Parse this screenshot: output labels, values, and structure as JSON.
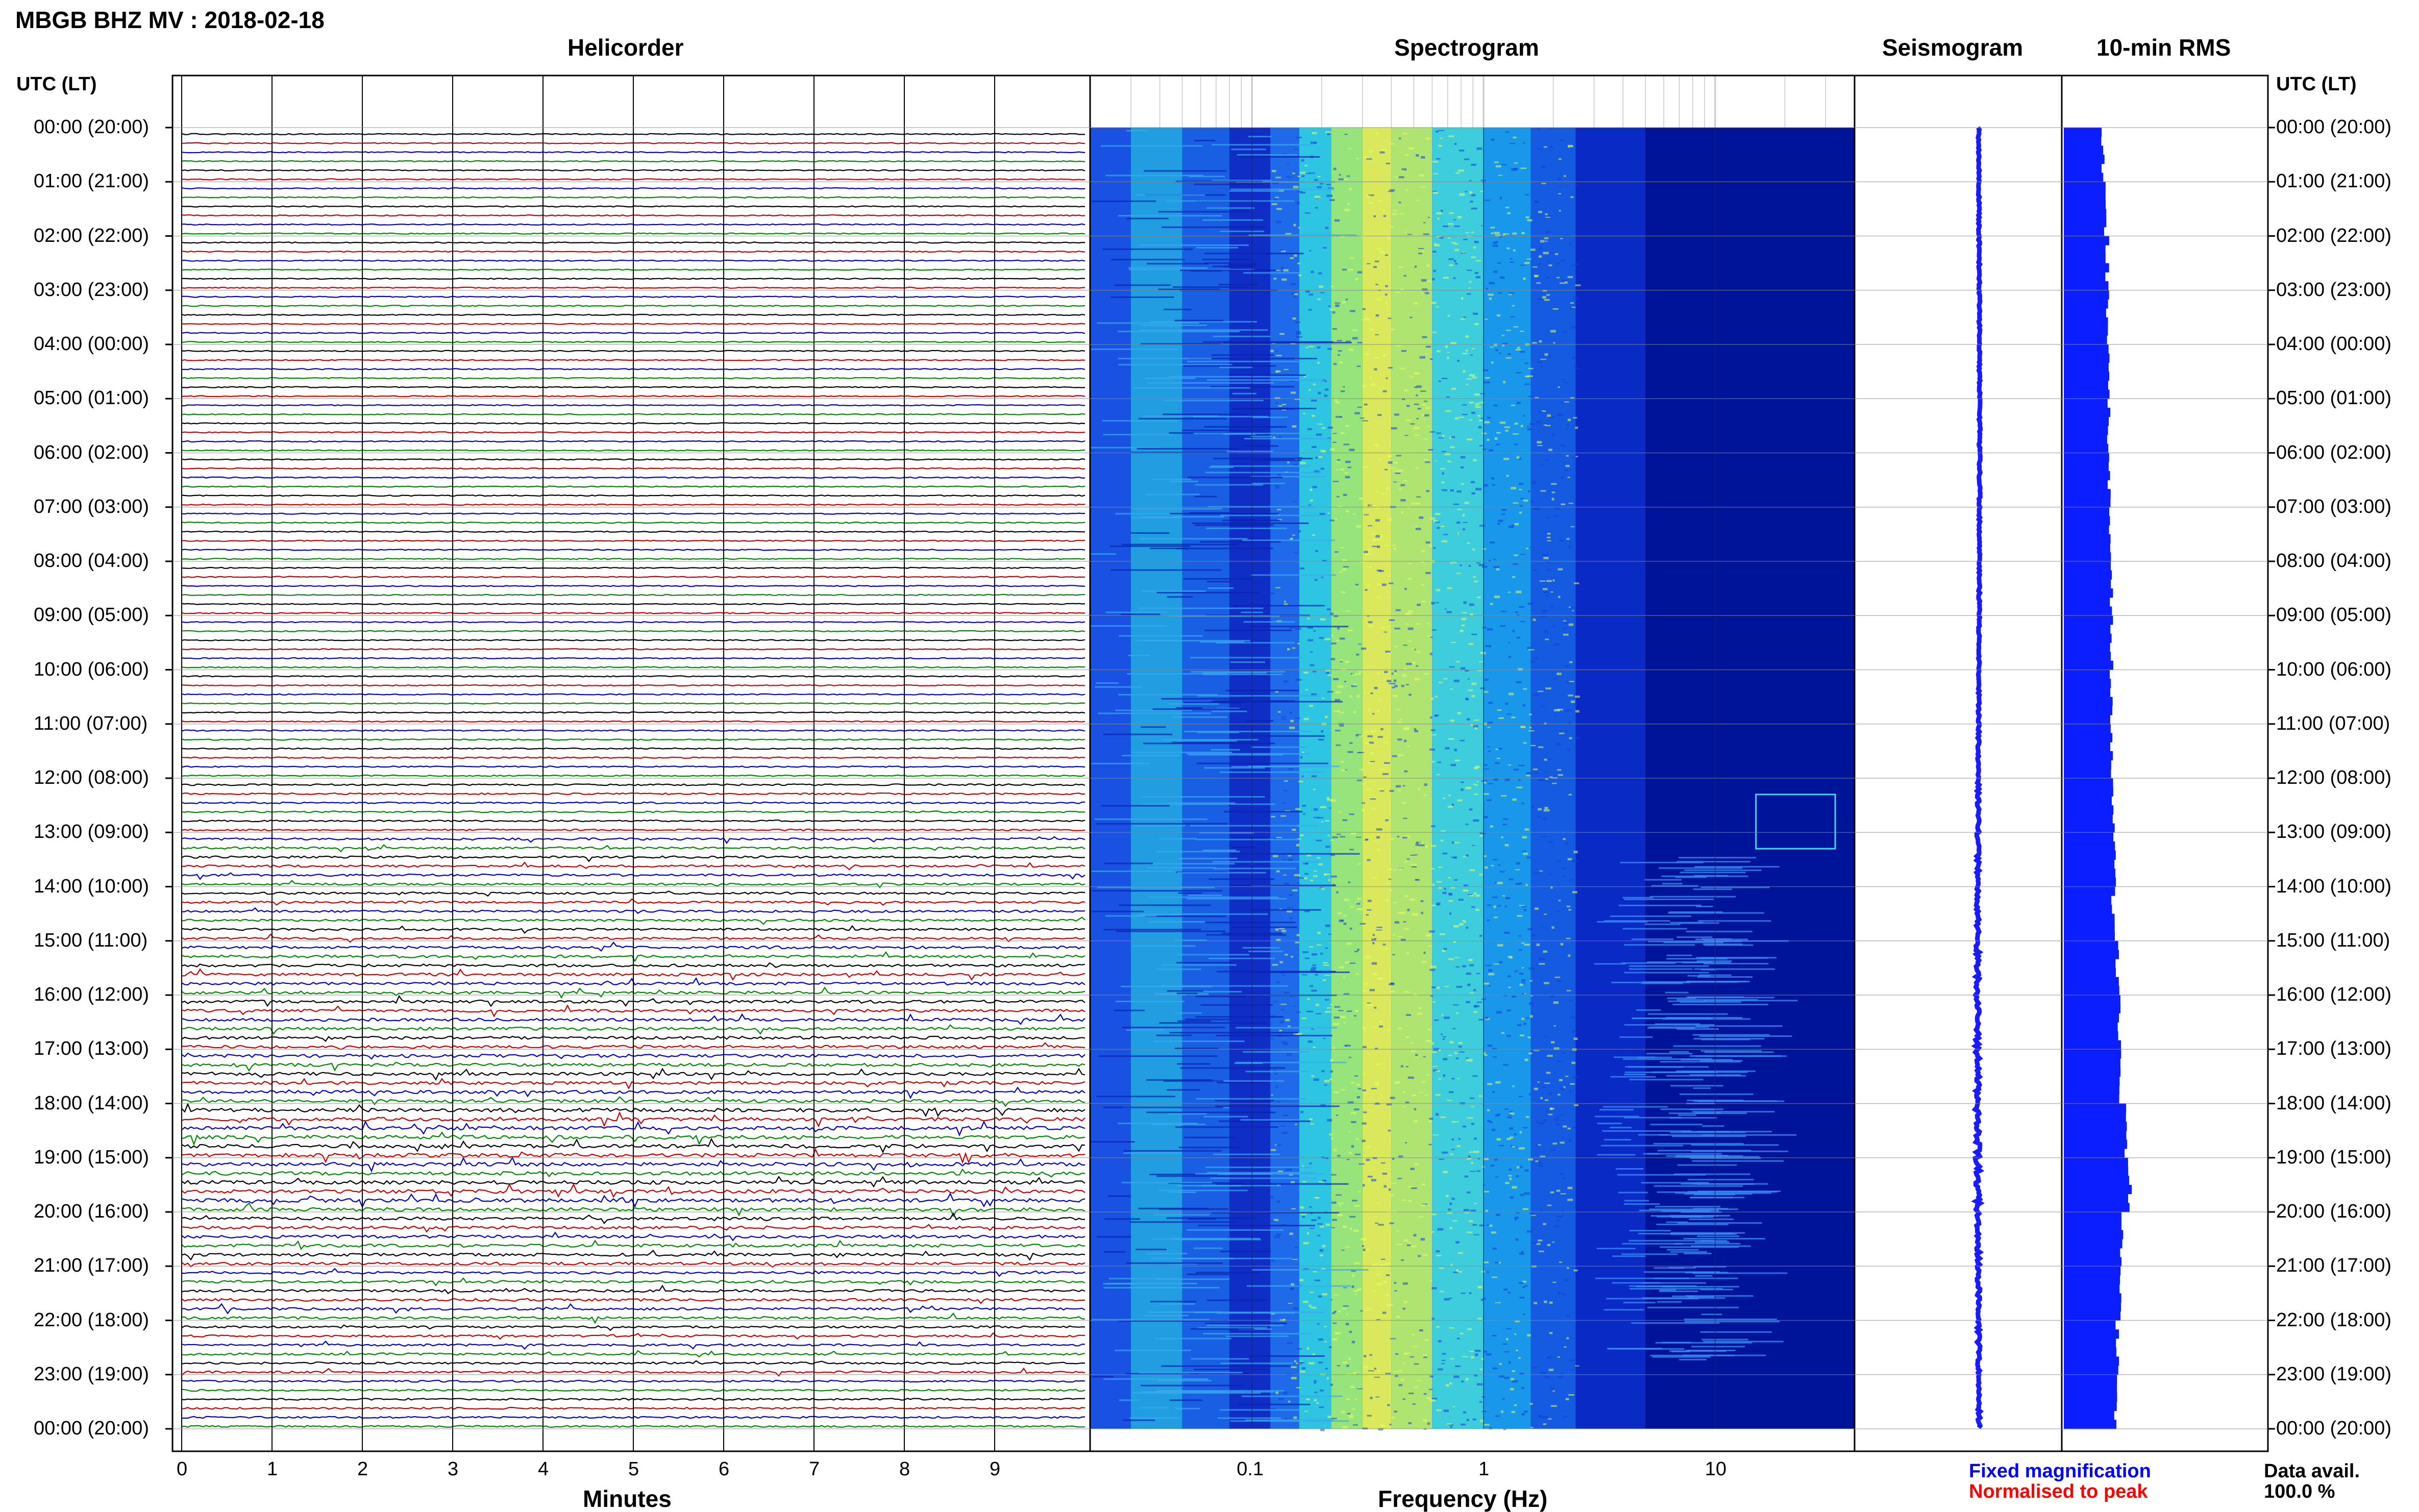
{
  "header": {
    "title": "MBGB BHZ MV : 2018-02-18",
    "helicorder_title": "Helicorder",
    "spectrogram_title": "Spectrogram",
    "seismogram_title": "Seismogram",
    "rms_title": "10-min RMS",
    "time_axis_label": "UTC (LT)"
  },
  "footer": {
    "minutes_label": "Minutes",
    "frequency_label": "Frequency (Hz)",
    "fixed_magnification": "Fixed magnification",
    "normalised_to_peak": "Normalised to peak",
    "data_avail_label": "Data avail.",
    "data_avail_value": "100.0 %"
  },
  "colors": {
    "trace_cycle": [
      "#000000",
      "#cc0000",
      "#0000cc",
      "#008800"
    ],
    "spectrogram_low": "#00008f",
    "spectrogram_high": "#ffff3c",
    "seismogram": "#1a1aff",
    "rms_bar": "#0a1eff",
    "fixed_magnification": "#0000ff",
    "normalised_to_peak": "#ff0000"
  },
  "chart_data": [
    {
      "type": "line",
      "name": "helicorder",
      "xlabel": "Minutes",
      "x_ticks": [
        "0",
        "1",
        "2",
        "3",
        "4",
        "5",
        "6",
        "7",
        "8",
        "9"
      ],
      "xlim": [
        0,
        10
      ],
      "rows_per_hour": 6,
      "hour_labels": [
        "00:00 (20:00)",
        "01:00 (21:00)",
        "02:00 (22:00)",
        "03:00 (23:00)",
        "04:00 (00:00)",
        "05:00 (01:00)",
        "06:00 (02:00)",
        "07:00 (03:00)",
        "08:00 (04:00)",
        "09:00 (05:00)",
        "10:00 (06:00)",
        "11:00 (07:00)",
        "12:00 (08:00)",
        "13:00 (09:00)",
        "14:00 (10:00)",
        "15:00 (11:00)",
        "16:00 (12:00)",
        "17:00 (13:00)",
        "18:00 (14:00)",
        "19:00 (15:00)",
        "20:00 (16:00)",
        "21:00 (17:00)",
        "22:00 (18:00)",
        "23:00 (19:00)",
        "00:00 (20:00)"
      ],
      "hourly_activity": [
        0.3,
        0.3,
        0.3,
        0.3,
        0.3,
        0.3,
        0.3,
        0.3,
        0.3,
        0.3,
        0.3,
        0.35,
        0.45,
        0.6,
        0.6,
        0.75,
        0.8,
        0.85,
        1.0,
        1.0,
        0.8,
        0.7,
        0.6,
        0.5
      ]
    },
    {
      "type": "heatmap",
      "name": "spectrogram",
      "xlabel": "Frequency (Hz)",
      "x_scale": "log",
      "xlim": [
        0.02,
        40
      ],
      "x_tick_labels": [
        "0.1",
        "1",
        "10"
      ],
      "x_tick_values": [
        0.1,
        1,
        10
      ],
      "peak_frequency_hz": 0.3
    },
    {
      "type": "line",
      "name": "seismogram",
      "description_rows": 24
    },
    {
      "type": "bar",
      "name": "rms_10min",
      "hourly_values": [
        0.19,
        0.2,
        0.21,
        0.21,
        0.22,
        0.22,
        0.22,
        0.22,
        0.23,
        0.23,
        0.23,
        0.23,
        0.24,
        0.25,
        0.24,
        0.26,
        0.27,
        0.27,
        0.3,
        0.32,
        0.28,
        0.27,
        0.26,
        0.25
      ]
    }
  ]
}
